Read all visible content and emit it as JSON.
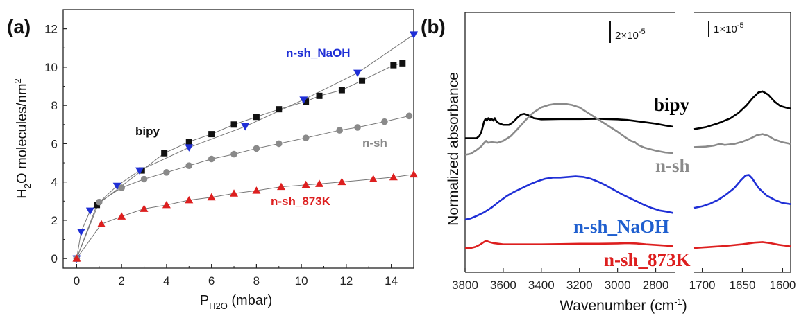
{
  "chart_data": [
    {
      "type": "scatter",
      "panel_label": "(a)",
      "xlabel_main": "P",
      "xlabel_sub": "H2O",
      "xlabel_unit": " (mbar)",
      "ylabel_main": "H",
      "ylabel_sub": "2",
      "ylabel_rest": "O molecules/nm",
      "ylabel_sup": "2",
      "xlim": [
        -0.6,
        15
      ],
      "ylim": [
        -0.5,
        13
      ],
      "xticks": [
        0,
        2,
        4,
        6,
        8,
        10,
        12,
        14
      ],
      "yticks": [
        0,
        2,
        4,
        6,
        8,
        10,
        12
      ],
      "series": [
        {
          "name": "bipy",
          "marker": "square",
          "color": "#111111",
          "label_color": "#111111",
          "x": [
            0,
            0.9,
            2.9,
            3.9,
            5.0,
            6.0,
            7.0,
            8.0,
            9.0,
            10.2,
            10.8,
            11.8,
            12.7,
            14.1,
            14.5
          ],
          "y": [
            0,
            2.8,
            4.6,
            5.5,
            6.1,
            6.5,
            7.0,
            7.4,
            7.8,
            8.2,
            8.5,
            8.8,
            9.3,
            10.1,
            10.2
          ]
        },
        {
          "name": "n-sh_NaOH",
          "marker": "triangle-down",
          "color": "#1f2fd6",
          "label_color": "#1f2fd6",
          "x": [
            0,
            0.2,
            0.6,
            1.8,
            2.8,
            5.0,
            7.5,
            10.1,
            12.5,
            15.0
          ],
          "y": [
            0,
            1.4,
            2.5,
            3.8,
            4.6,
            5.8,
            6.9,
            8.3,
            9.7,
            11.7
          ]
        },
        {
          "name": "n-sh",
          "marker": "circle",
          "color": "#8a8a8a",
          "label_color": "#8a8a8a",
          "x": [
            0,
            1.0,
            2.0,
            3.0,
            4.0,
            5.0,
            6.0,
            7.0,
            8.0,
            9.0,
            10.2,
            11.7,
            12.5,
            13.7,
            14.8
          ],
          "y": [
            0,
            2.95,
            3.7,
            4.15,
            4.5,
            4.85,
            5.2,
            5.45,
            5.75,
            6.0,
            6.3,
            6.7,
            6.85,
            7.15,
            7.45
          ]
        },
        {
          "name": "n-sh_873K",
          "marker": "triangle-up",
          "color": "#dd1f1f",
          "label_color": "#dd1f1f",
          "x": [
            0,
            1.1,
            2.0,
            3.0,
            4.0,
            5.0,
            6.0,
            7.0,
            8.0,
            9.1,
            10.2,
            10.8,
            11.8,
            13.2,
            14.1,
            15.0
          ],
          "y": [
            0,
            1.8,
            2.2,
            2.6,
            2.8,
            3.05,
            3.2,
            3.4,
            3.55,
            3.75,
            3.85,
            3.9,
            4.0,
            4.15,
            4.25,
            4.4
          ]
        }
      ]
    },
    {
      "type": "line",
      "panel_label": "(b)",
      "ylabel": "Normalized absorbance",
      "xlabel_main": "Wavenumber (cm",
      "xlabel_sup": "-1",
      "xlabel_close": ")",
      "scale_bar_left": {
        "base": "2×10",
        "exp": "-5"
      },
      "scale_bar_right": {
        "base": "1×10",
        "exp": "-5"
      },
      "left_xlim": [
        3800,
        2700
      ],
      "right_xlim": [
        1710,
        1590
      ],
      "left_xticks": [
        3800,
        3600,
        3400,
        3200,
        3000,
        2800
      ],
      "right_xticks": [
        1700,
        1650,
        1600
      ],
      "series": [
        {
          "name": "bipy",
          "color": "#000000",
          "label_color": "#000000",
          "left": [
            [
              3800,
              0.8
            ],
            [
              3760,
              0.8
            ],
            [
              3740,
              0.8
            ],
            [
              3725,
              0.84
            ],
            [
              3715,
              0.9
            ],
            [
              3708,
              0.98
            ],
            [
              3700,
              1.08
            ],
            [
              3693,
              1.12
            ],
            [
              3686,
              1.09
            ],
            [
              3678,
              1.13
            ],
            [
              3670,
              1.1
            ],
            [
              3662,
              1.12
            ],
            [
              3652,
              1.09
            ],
            [
              3644,
              1.13
            ],
            [
              3636,
              1.08
            ],
            [
              3625,
              1.05
            ],
            [
              3600,
              1.02
            ],
            [
              3570,
              1.02
            ],
            [
              3550,
              1.06
            ],
            [
              3525,
              1.14
            ],
            [
              3505,
              1.19
            ],
            [
              3490,
              1.2
            ],
            [
              3470,
              1.18
            ],
            [
              3440,
              1.13
            ],
            [
              3400,
              1.11
            ],
            [
              3300,
              1.115
            ],
            [
              3200,
              1.115
            ],
            [
              3100,
              1.12
            ],
            [
              3000,
              1.11
            ],
            [
              2950,
              1.1
            ],
            [
              2900,
              1.08
            ],
            [
              2850,
              1.06
            ],
            [
              2800,
              1.04
            ],
            [
              2750,
              1.01
            ],
            [
              2710,
              0.99
            ]
          ],
          "right": [
            [
              1710,
              0.52
            ],
            [
              1695,
              0.56
            ],
            [
              1680,
              0.63
            ],
            [
              1665,
              0.72
            ],
            [
              1655,
              0.82
            ],
            [
              1645,
              0.96
            ],
            [
              1637,
              1.1
            ],
            [
              1630,
              1.2
            ],
            [
              1625,
              1.22
            ],
            [
              1618,
              1.16
            ],
            [
              1610,
              1.03
            ],
            [
              1603,
              0.95
            ],
            [
              1596,
              0.92
            ],
            [
              1590,
              0.9
            ]
          ]
        },
        {
          "name": "n-sh",
          "color": "#8a8a8a",
          "label_color": "#8a8a8a",
          "left": [
            [
              3800,
              0.22
            ],
            [
              3770,
              0.24
            ],
            [
              3740,
              0.3
            ],
            [
              3715,
              0.36
            ],
            [
              3700,
              0.42
            ],
            [
              3690,
              0.45
            ],
            [
              3680,
              0.42
            ],
            [
              3660,
              0.43
            ],
            [
              3630,
              0.42
            ],
            [
              3600,
              0.45
            ],
            [
              3560,
              0.53
            ],
            [
              3520,
              0.66
            ],
            [
              3480,
              0.8
            ],
            [
              3440,
              0.92
            ],
            [
              3400,
              1.0
            ],
            [
              3360,
              1.04
            ],
            [
              3320,
              1.06
            ],
            [
              3280,
              1.06
            ],
            [
              3240,
              1.04
            ],
            [
              3200,
              1.0
            ],
            [
              3150,
              0.9
            ],
            [
              3100,
              0.8
            ],
            [
              3050,
              0.7
            ],
            [
              3000,
              0.6
            ],
            [
              2960,
              0.51
            ],
            [
              2930,
              0.45
            ],
            [
              2910,
              0.43
            ],
            [
              2890,
              0.38
            ],
            [
              2860,
              0.34
            ],
            [
              2800,
              0.29
            ],
            [
              2750,
              0.26
            ],
            [
              2710,
              0.25
            ]
          ],
          "right": [
            [
              1710,
              0.29
            ],
            [
              1695,
              0.3
            ],
            [
              1685,
              0.32
            ],
            [
              1678,
              0.35
            ],
            [
              1672,
              0.33
            ],
            [
              1660,
              0.35
            ],
            [
              1650,
              0.39
            ],
            [
              1640,
              0.45
            ],
            [
              1632,
              0.51
            ],
            [
              1625,
              0.53
            ],
            [
              1618,
              0.5
            ],
            [
              1610,
              0.43
            ],
            [
              1600,
              0.38
            ],
            [
              1590,
              0.35
            ]
          ]
        },
        {
          "name": "n-sh_NaOH",
          "color": "#1f2fd6",
          "label_color": "#1f5fcf",
          "left": [
            [
              3800,
              0.0
            ],
            [
              3770,
              0.02
            ],
            [
              3740,
              0.06
            ],
            [
              3700,
              0.12
            ],
            [
              3660,
              0.2
            ],
            [
              3620,
              0.3
            ],
            [
              3580,
              0.39
            ],
            [
              3540,
              0.46
            ],
            [
              3500,
              0.52
            ],
            [
              3460,
              0.58
            ],
            [
              3420,
              0.63
            ],
            [
              3380,
              0.67
            ],
            [
              3340,
              0.69
            ],
            [
              3300,
              0.69
            ],
            [
              3260,
              0.7
            ],
            [
              3220,
              0.71
            ],
            [
              3180,
              0.7
            ],
            [
              3140,
              0.67
            ],
            [
              3100,
              0.62
            ],
            [
              3060,
              0.56
            ],
            [
              3020,
              0.49
            ],
            [
              2980,
              0.42
            ],
            [
              2940,
              0.36
            ],
            [
              2900,
              0.3
            ],
            [
              2860,
              0.24
            ],
            [
              2820,
              0.19
            ],
            [
              2780,
              0.15
            ],
            [
              2740,
              0.13
            ],
            [
              2710,
              0.11
            ]
          ],
          "right": [
            [
              1710,
              0.05
            ],
            [
              1700,
              0.08
            ],
            [
              1690,
              0.13
            ],
            [
              1680,
              0.2
            ],
            [
              1670,
              0.3
            ],
            [
              1660,
              0.42
            ],
            [
              1652,
              0.56
            ],
            [
              1646,
              0.65
            ],
            [
              1642,
              0.66
            ],
            [
              1638,
              0.6
            ],
            [
              1630,
              0.42
            ],
            [
              1620,
              0.28
            ],
            [
              1610,
              0.2
            ],
            [
              1600,
              0.14
            ],
            [
              1590,
              0.12
            ]
          ]
        },
        {
          "name": "n-sh_873K",
          "color": "#dd1f1f",
          "label_color": "#dd1f1f",
          "left": [
            [
              3800,
              0.0
            ],
            [
              3770,
              0.0
            ],
            [
              3745,
              0.02
            ],
            [
              3725,
              0.05
            ],
            [
              3705,
              0.09
            ],
            [
              3690,
              0.12
            ],
            [
              3675,
              0.1
            ],
            [
              3650,
              0.08
            ],
            [
              3600,
              0.06
            ],
            [
              3500,
              0.06
            ],
            [
              3400,
              0.06
            ],
            [
              3300,
              0.065
            ],
            [
              3200,
              0.07
            ],
            [
              3100,
              0.07
            ],
            [
              3000,
              0.075
            ],
            [
              2950,
              0.08
            ],
            [
              2900,
              0.075
            ],
            [
              2850,
              0.06
            ],
            [
              2800,
              0.05
            ],
            [
              2750,
              0.04
            ],
            [
              2710,
              0.03
            ]
          ],
          "right": [
            [
              1710,
              0.0
            ],
            [
              1690,
              0.02
            ],
            [
              1670,
              0.04
            ],
            [
              1650,
              0.07
            ],
            [
              1635,
              0.1
            ],
            [
              1625,
              0.11
            ],
            [
              1615,
              0.09
            ],
            [
              1605,
              0.06
            ],
            [
              1595,
              0.04
            ],
            [
              1590,
              0.03
            ]
          ]
        }
      ]
    }
  ]
}
